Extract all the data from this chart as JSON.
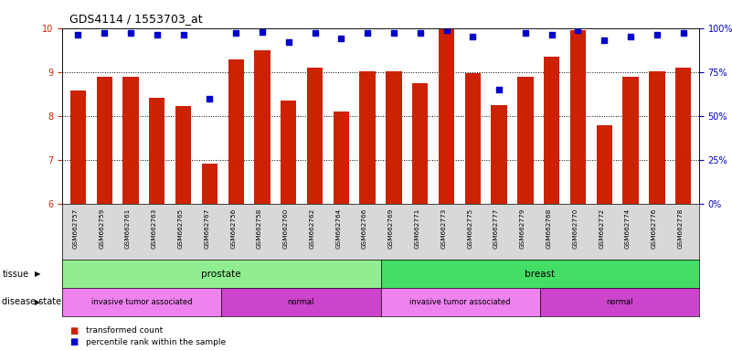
{
  "title": "GDS4114 / 1553703_at",
  "samples": [
    "GSM662757",
    "GSM662759",
    "GSM662761",
    "GSM662763",
    "GSM662765",
    "GSM662767",
    "GSM662756",
    "GSM662758",
    "GSM662760",
    "GSM662762",
    "GSM662764",
    "GSM662766",
    "GSM662769",
    "GSM662771",
    "GSM662773",
    "GSM662775",
    "GSM662777",
    "GSM662779",
    "GSM662768",
    "GSM662770",
    "GSM662772",
    "GSM662774",
    "GSM662776",
    "GSM662778"
  ],
  "bar_values": [
    8.57,
    8.88,
    8.88,
    8.42,
    8.22,
    6.92,
    9.28,
    9.5,
    8.35,
    9.1,
    8.1,
    9.02,
    9.02,
    8.75,
    9.98,
    8.98,
    8.25,
    8.9,
    9.35,
    9.95,
    7.78,
    8.9,
    9.02,
    9.1
  ],
  "dot_values": [
    96,
    97,
    97,
    96,
    96,
    60,
    97,
    98,
    92,
    97,
    94,
    97,
    97,
    97,
    99,
    95,
    65,
    97,
    96,
    99,
    93,
    95,
    96,
    97
  ],
  "bar_color": "#CC2200",
  "dot_color": "#0000CC",
  "ylim_left": [
    6,
    10
  ],
  "ylim_right": [
    0,
    100
  ],
  "yticks_left": [
    6,
    7,
    8,
    9,
    10
  ],
  "yticks_right": [
    0,
    25,
    50,
    75,
    100
  ],
  "ylabel_right_labels": [
    "0%",
    "25%",
    "50%",
    "75%",
    "100%"
  ],
  "tissue_groups": [
    {
      "label": "prostate",
      "start": 0,
      "end": 12,
      "color": "#90EE90"
    },
    {
      "label": "breast",
      "start": 12,
      "end": 24,
      "color": "#44DD66"
    }
  ],
  "disease_states": [
    {
      "label": "invasive tumor associated",
      "start": 0,
      "end": 6,
      "color": "#EE82EE"
    },
    {
      "label": "normal",
      "start": 6,
      "end": 12,
      "color": "#CC44CC"
    },
    {
      "label": "invasive tumor associated",
      "start": 12,
      "end": 18,
      "color": "#EE82EE"
    },
    {
      "label": "normal",
      "start": 18,
      "end": 24,
      "color": "#CC44CC"
    }
  ],
  "legend_items": [
    {
      "label": "transformed count",
      "color": "#CC2200"
    },
    {
      "label": "percentile rank within the sample",
      "color": "#0000CC"
    }
  ],
  "bg_color": "#FFFFFF",
  "bar_width": 0.6,
  "title_fontsize": 9,
  "tick_fontsize": 7,
  "label_fontsize": 6,
  "xticklabel_area_color": "#D8D8D8"
}
